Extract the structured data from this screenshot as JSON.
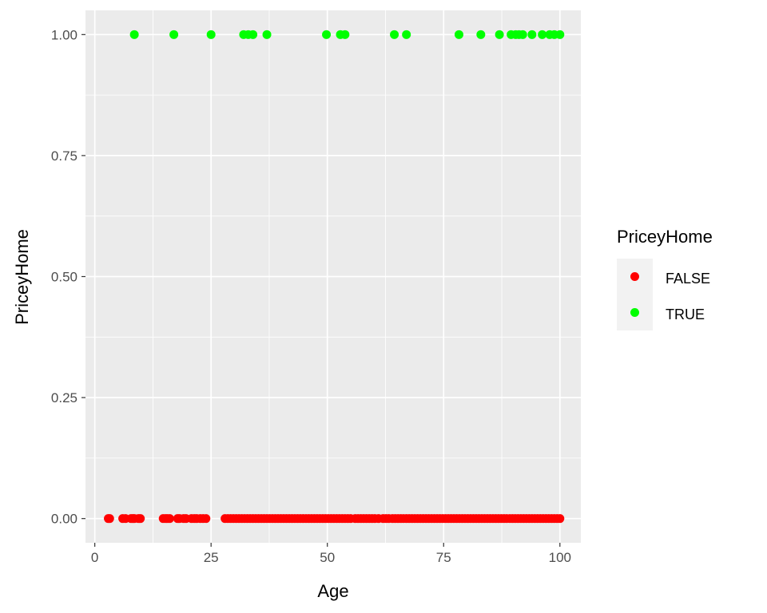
{
  "chart_data": {
    "type": "scatter",
    "title": "",
    "xlabel": "Age",
    "ylabel": "PriceyHome",
    "xlim": [
      -2,
      104.5
    ],
    "ylim": [
      -0.05,
      1.05
    ],
    "x_ticks": [
      0,
      25,
      50,
      75,
      100
    ],
    "x_tick_labels": [
      "0",
      "25",
      "50",
      "75",
      "100"
    ],
    "y_ticks": [
      0,
      0.25,
      0.5,
      0.75,
      1
    ],
    "y_tick_labels": [
      "0.00",
      "0.25",
      "0.50",
      "0.75",
      "1.00"
    ],
    "grid": true,
    "legend": {
      "title": "PriceyHome",
      "placement": "right",
      "entries": [
        "FALSE",
        "TRUE"
      ]
    },
    "series": [
      {
        "name": "FALSE",
        "color": "#ff0000",
        "x": [
          2.9,
          3.2,
          6.0,
          6.6,
          7.8,
          8.2,
          8.5,
          9.4,
          9.8,
          14.7,
          15.2,
          15.6,
          16.1,
          17.8,
          18.2,
          19.1,
          19.6,
          20.8,
          21.4,
          21.9,
          22.7,
          23.3,
          23.9,
          28.0,
          28.6,
          29.2,
          29.8,
          30.4,
          31.0,
          31.6,
          32.2,
          32.8,
          33.4,
          34.0,
          34.6,
          35.2,
          35.8,
          36.4,
          37.0,
          37.6,
          38.2,
          38.8,
          39.4,
          40.0,
          40.6,
          41.2,
          41.8,
          42.4,
          43.0,
          43.6,
          44.2,
          44.8,
          45.4,
          46.0,
          46.6,
          47.2,
          47.8,
          48.4,
          49.0,
          49.6,
          50.2,
          50.8,
          51.4,
          52.0,
          52.6,
          53.2,
          53.8,
          54.4,
          55.0,
          56.0,
          56.6,
          57.2,
          57.8,
          58.4,
          59.0,
          59.6,
          60.2,
          61.0,
          62.0,
          62.6,
          63.2,
          64.0,
          64.6,
          65.2,
          65.8,
          66.4,
          67.0,
          67.6,
          68.2,
          68.8,
          69.4,
          70.0,
          70.6,
          71.2,
          71.8,
          72.4,
          73.0,
          73.6,
          74.2,
          74.8,
          75.4,
          76.0,
          76.6,
          77.2,
          77.8,
          78.4,
          79.0,
          79.6,
          80.2,
          80.8,
          81.4,
          82.0,
          82.6,
          83.2,
          83.8,
          84.4,
          85.0,
          85.6,
          86.2,
          86.8,
          87.4,
          88.0,
          88.6,
          89.2,
          89.8,
          90.4,
          91.0,
          91.6,
          92.2,
          92.8,
          93.4,
          94.0,
          94.6,
          95.2,
          95.8,
          96.4,
          97.0,
          97.6,
          98.2,
          98.8,
          99.4,
          100.0
        ],
        "y_value": 0
      },
      {
        "name": "TRUE",
        "color": "#00ff00",
        "x": [
          8.5,
          17.0,
          25.0,
          32.0,
          33.0,
          34.0,
          37.0,
          49.8,
          52.8,
          53.8,
          64.4,
          67.0,
          78.3,
          83.0,
          87.0,
          89.5,
          90.5,
          91.2,
          92.0,
          94.0,
          96.2,
          97.8,
          98.8,
          100.0
        ],
        "y_value": 1
      }
    ]
  }
}
